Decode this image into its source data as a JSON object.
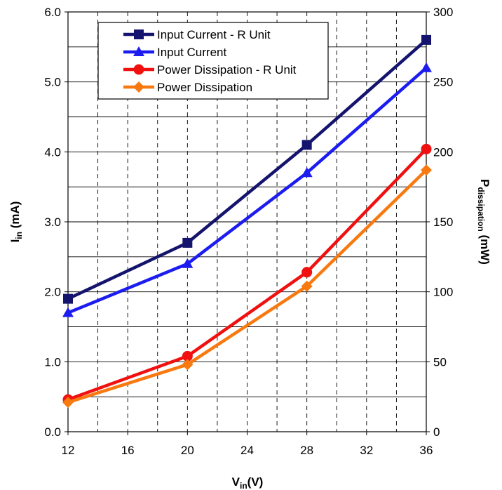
{
  "chart_data": {
    "type": "line",
    "x": [
      12,
      20,
      28,
      36
    ],
    "xlim": [
      12,
      36
    ],
    "x_ticks": [
      "12",
      "16",
      "20",
      "24",
      "28",
      "32",
      "36"
    ],
    "y_left": {
      "ylim": [
        0,
        6
      ],
      "ticks": [
        "0.0",
        "1.0",
        "2.0",
        "3.0",
        "4.0",
        "5.0",
        "6.0"
      ]
    },
    "y_right": {
      "ylim": [
        0,
        300
      ],
      "ticks": [
        "0",
        "50",
        "100",
        "150",
        "200",
        "250",
        "300"
      ]
    },
    "xlabel": {
      "main": "V",
      "sub": "in",
      "tail": "(V)"
    },
    "ylabel_left": {
      "main": "I",
      "sub": "in",
      "tail": " (mA)"
    },
    "ylabel_right": {
      "main": "P",
      "sub": "dissipation",
      "tail": " (mW)"
    },
    "series": [
      {
        "name": "Input Current - R Unit",
        "axis": "left",
        "marker": "square",
        "color": "#14146e",
        "values": [
          1.9,
          2.7,
          4.1,
          5.6
        ]
      },
      {
        "name": "Input Current",
        "axis": "left",
        "marker": "triangle",
        "color": "#1c1cf0",
        "values": [
          1.7,
          2.4,
          3.7,
          5.2
        ]
      },
      {
        "name": "Power Dissipation - R Unit",
        "axis": "right",
        "marker": "circle",
        "color": "#f01010",
        "values": [
          23,
          54,
          114,
          202
        ]
      },
      {
        "name": "Power Dissipation",
        "axis": "right",
        "marker": "diamond",
        "color": "#f7790f",
        "values": [
          21,
          48,
          104,
          187
        ]
      }
    ],
    "grid": {
      "major_horizontal": true,
      "minor_horizontal": true,
      "vertical_dashed": true
    },
    "legend": "top-left"
  }
}
